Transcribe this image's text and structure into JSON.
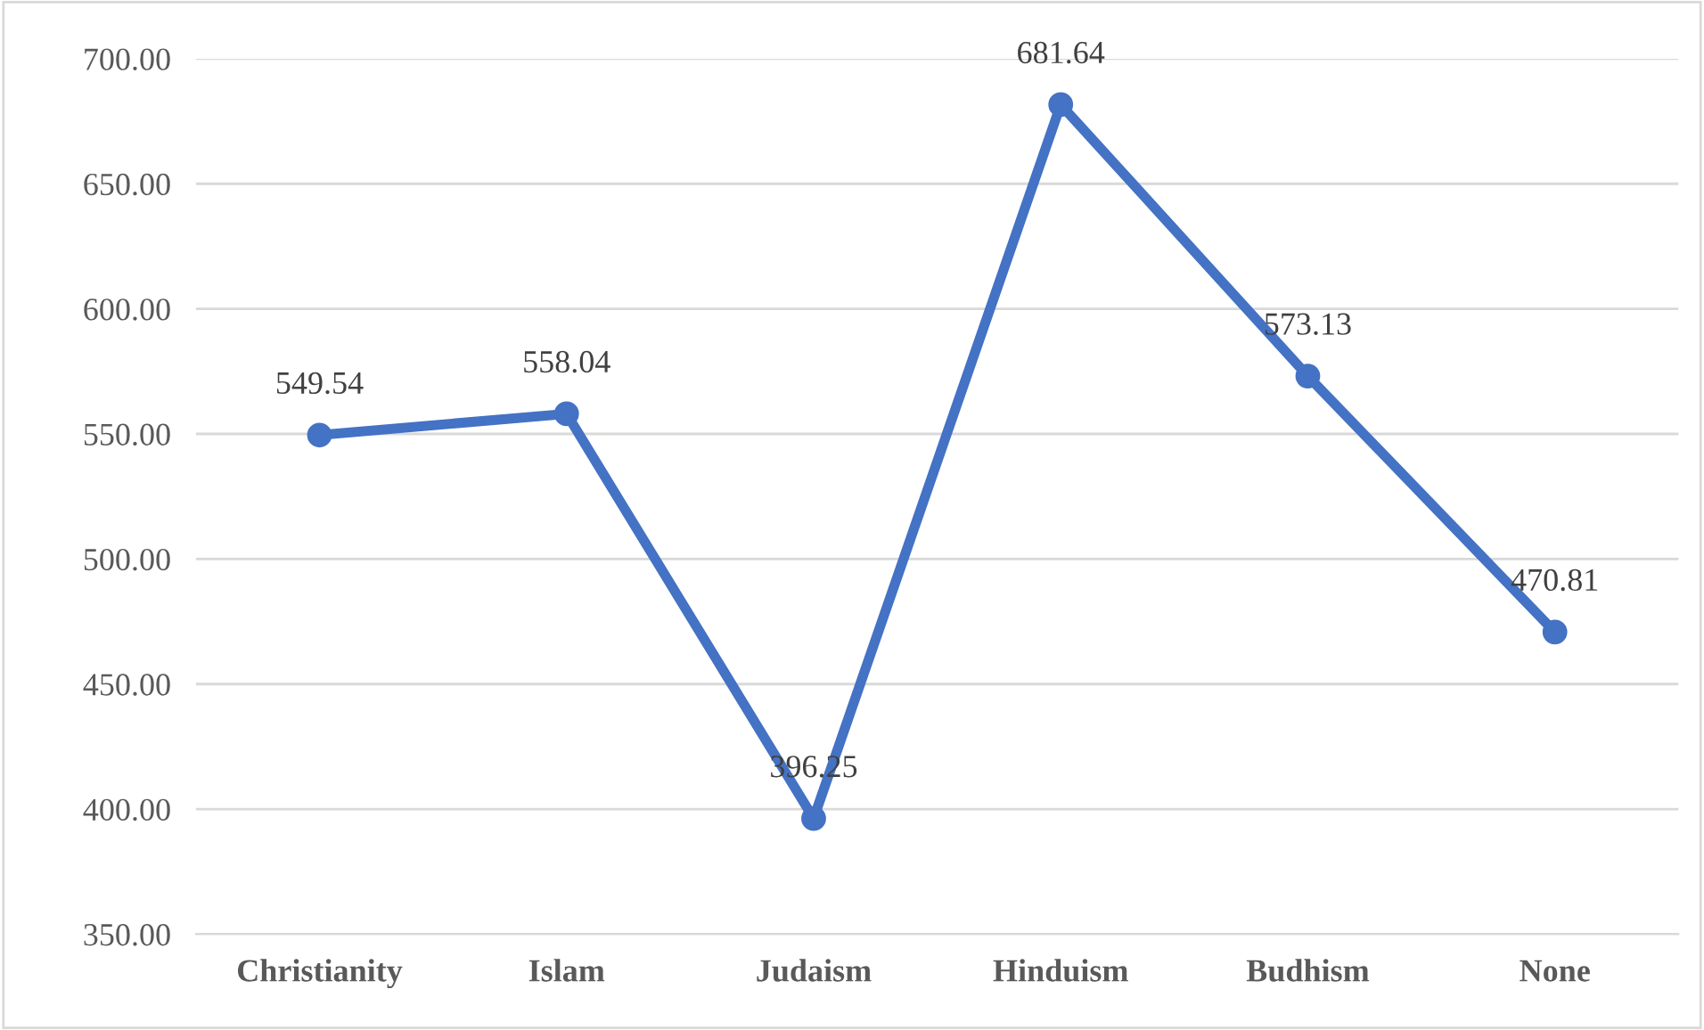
{
  "chart_data": {
    "type": "line",
    "categories": [
      "Christianity",
      "Islam",
      "Judaism",
      "Hinduism",
      "Budhism",
      "None"
    ],
    "series": [
      {
        "color": "#4472c4",
        "values": [
          549.54,
          558.04,
          396.25,
          681.64,
          573.13,
          470.81
        ]
      }
    ],
    "ylim": [
      350,
      700
    ],
    "yticks": [
      {
        "value": 350,
        "label": "350.00"
      },
      {
        "value": 400,
        "label": "400.00"
      },
      {
        "value": 450,
        "label": "450.00"
      },
      {
        "value": 500,
        "label": "500.00"
      },
      {
        "value": 550,
        "label": "550.00"
      },
      {
        "value": 600,
        "label": "600.00"
      },
      {
        "value": 650,
        "label": "650.00"
      },
      {
        "value": 700,
        "label": "700.00"
      }
    ],
    "grid": "y",
    "marker": "circle",
    "line_style": "solid",
    "data_labels": true
  }
}
